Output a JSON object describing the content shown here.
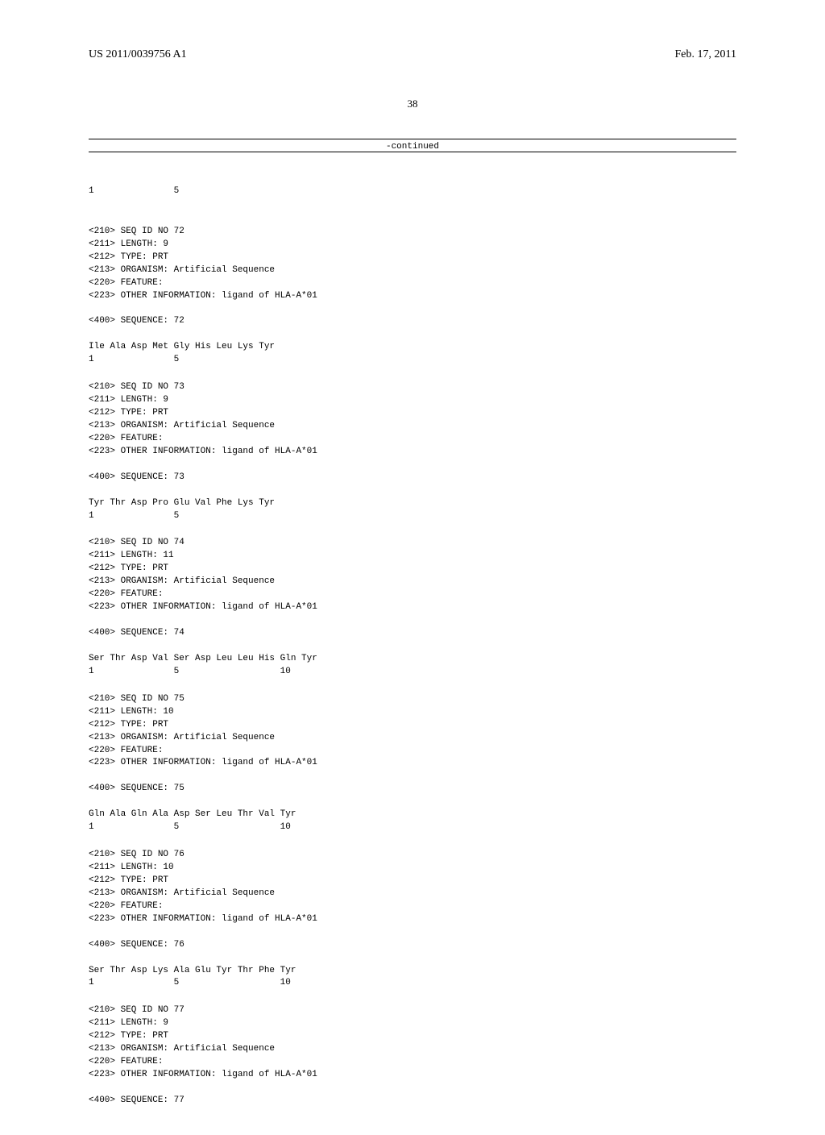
{
  "header": {
    "left": "US 2011/0039756 A1",
    "right": "Feb. 17, 2011"
  },
  "pageNumber": "38",
  "continued": "-continued",
  "initial": {
    "numbers": "1               5"
  },
  "sequences": [
    {
      "meta": [
        "<210> SEQ ID NO 72",
        "<211> LENGTH: 9",
        "<212> TYPE: PRT",
        "<213> ORGANISM: Artificial Sequence",
        "<220> FEATURE:",
        "<223> OTHER INFORMATION: ligand of HLA-A*01"
      ],
      "seqLabel": "<400> SEQUENCE: 72",
      "residues": "Ile Ala Asp Met Gly His Leu Lys Tyr",
      "numbers": "1               5"
    },
    {
      "meta": [
        "<210> SEQ ID NO 73",
        "<211> LENGTH: 9",
        "<212> TYPE: PRT",
        "<213> ORGANISM: Artificial Sequence",
        "<220> FEATURE:",
        "<223> OTHER INFORMATION: ligand of HLA-A*01"
      ],
      "seqLabel": "<400> SEQUENCE: 73",
      "residues": "Tyr Thr Asp Pro Glu Val Phe Lys Tyr",
      "numbers": "1               5"
    },
    {
      "meta": [
        "<210> SEQ ID NO 74",
        "<211> LENGTH: 11",
        "<212> TYPE: PRT",
        "<213> ORGANISM: Artificial Sequence",
        "<220> FEATURE:",
        "<223> OTHER INFORMATION: ligand of HLA-A*01"
      ],
      "seqLabel": "<400> SEQUENCE: 74",
      "residues": "Ser Thr Asp Val Ser Asp Leu Leu His Gln Tyr",
      "numbers": "1               5                   10"
    },
    {
      "meta": [
        "<210> SEQ ID NO 75",
        "<211> LENGTH: 10",
        "<212> TYPE: PRT",
        "<213> ORGANISM: Artificial Sequence",
        "<220> FEATURE:",
        "<223> OTHER INFORMATION: ligand of HLA-A*01"
      ],
      "seqLabel": "<400> SEQUENCE: 75",
      "residues": "Gln Ala Gln Ala Asp Ser Leu Thr Val Tyr",
      "numbers": "1               5                   10"
    },
    {
      "meta": [
        "<210> SEQ ID NO 76",
        "<211> LENGTH: 10",
        "<212> TYPE: PRT",
        "<213> ORGANISM: Artificial Sequence",
        "<220> FEATURE:",
        "<223> OTHER INFORMATION: ligand of HLA-A*01"
      ],
      "seqLabel": "<400> SEQUENCE: 76",
      "residues": "Ser Thr Asp Lys Ala Glu Tyr Thr Phe Tyr",
      "numbers": "1               5                   10"
    },
    {
      "meta": [
        "<210> SEQ ID NO 77",
        "<211> LENGTH: 9",
        "<212> TYPE: PRT",
        "<213> ORGANISM: Artificial Sequence",
        "<220> FEATURE:",
        "<223> OTHER INFORMATION: ligand of HLA-A*01"
      ],
      "seqLabel": "<400> SEQUENCE: 77",
      "residues": "",
      "numbers": ""
    }
  ]
}
